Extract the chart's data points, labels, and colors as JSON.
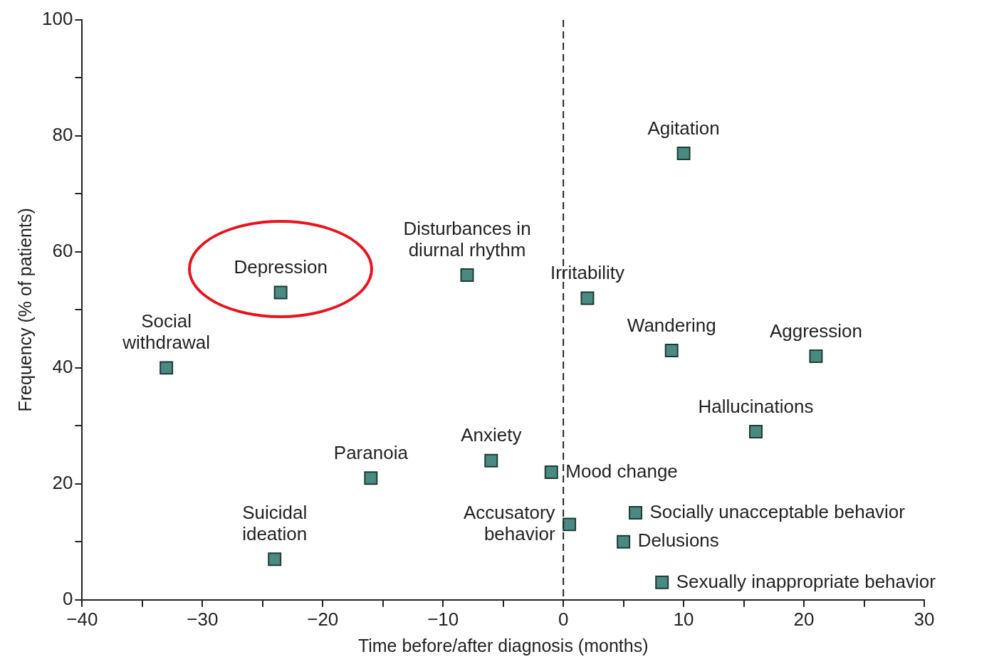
{
  "chart_data": {
    "type": "scatter",
    "xlabel": "Time before/after diagnosis (months)",
    "ylabel": "Frequency (% of patients)",
    "x": [
      -33,
      -23.5,
      -24,
      -16,
      -8,
      -6,
      -1,
      0.5,
      2,
      10,
      9,
      21,
      16,
      6,
      5,
      8.2
    ],
    "values": [
      40,
      53,
      7,
      21,
      56,
      24,
      22,
      13,
      52,
      77,
      43,
      42,
      29,
      15,
      10,
      3
    ],
    "color": "#4a8a80",
    "marker": "square",
    "xlim": [
      -40,
      30
    ],
    "ylim": [
      0,
      100
    ],
    "xticks": [
      -40,
      {
        "value": -35,
        "label": null
      },
      -30,
      {
        "value": -25,
        "label": null
      },
      -20,
      {
        "value": -15,
        "label": null
      },
      -10,
      {
        "value": -5,
        "label": null
      },
      0,
      {
        "value": 5,
        "label": null
      },
      10,
      {
        "value": 15,
        "label": null
      },
      20,
      {
        "value": 25,
        "label": null
      },
      30
    ],
    "yticks": [
      0,
      {
        "value": 10,
        "label": null
      },
      20,
      {
        "value": 30,
        "label": null
      },
      40,
      {
        "value": 50,
        "label": null
      },
      60,
      {
        "value": 70,
        "label": null
      },
      80,
      {
        "value": 90,
        "label": null
      },
      100
    ],
    "ref_lines": [
      {
        "axis": "x",
        "value": 0,
        "label": null,
        "color": "#222222",
        "line_style": "dashed"
      }
    ],
    "annotations": [
      {
        "text": "Social\nwithdrawal",
        "x": -33,
        "y": 40
      },
      {
        "text": "Depression",
        "x": -23.5,
        "y": 53
      },
      {
        "text": "Suicidal\nideation",
        "x": -24,
        "y": 7
      },
      {
        "text": "Paranoia",
        "x": -16,
        "y": 21
      },
      {
        "text": "Disturbances in\ndiurnal rhythm",
        "x": -8,
        "y": 56
      },
      {
        "text": "Anxiety",
        "x": -6,
        "y": 24
      },
      {
        "text": "Mood change",
        "x": -1,
        "y": 22
      },
      {
        "text": "Accusatory\nbehavior",
        "x": 0.5,
        "y": 13
      },
      {
        "text": "Irritability",
        "x": 2,
        "y": 52
      },
      {
        "text": "Agitation",
        "x": 10,
        "y": 77
      },
      {
        "text": "Wandering",
        "x": 9,
        "y": 43
      },
      {
        "text": "Aggression",
        "x": 21,
        "y": 42
      },
      {
        "text": "Hallucinations",
        "x": 16,
        "y": 29
      },
      {
        "text": "Socially unacceptable behavior",
        "x": 6,
        "y": 15
      },
      {
        "text": "Delusions",
        "x": 5,
        "y": 10
      },
      {
        "text": "Sexually inappropriate behavior",
        "x": 8.2,
        "y": 3
      }
    ]
  }
}
